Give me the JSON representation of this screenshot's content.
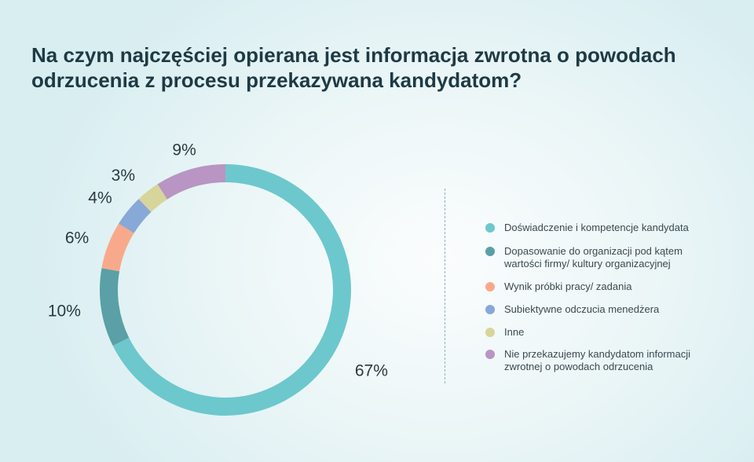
{
  "title": {
    "line1": "Na czym najczęściej opierana jest informacja zwrotna o powodach",
    "line2": "odrzucenia z procesu przekazywana kandydatom?"
  },
  "chart_data": {
    "type": "pie",
    "variant": "donut",
    "slices": [
      {
        "label": "Doświadczenie i kompetencje kandydata",
        "value": 67,
        "value_label": "67%",
        "color": "#6cc8cd"
      },
      {
        "label": "Dopasowanie do organizacji pod kątem wartości firmy/ kultury organizacyjnej",
        "value": 10,
        "value_label": "10%",
        "color": "#5aa0a6"
      },
      {
        "label": "Wynik próbki pracy/ zadania",
        "value": 6,
        "value_label": "6%",
        "color": "#f9a98b"
      },
      {
        "label": "Subiektywne odczucia menedżera",
        "value": 4,
        "value_label": "4%",
        "color": "#88a8d8"
      },
      {
        "label": "Inne",
        "value": 3,
        "value_label": "3%",
        "color": "#d8d59a"
      },
      {
        "label": "Nie przekazujemy kandydatom informacji zwrotnej o powodach odrzucenia",
        "value": 9,
        "value_label": "9%",
        "color": "#b895c2"
      }
    ],
    "legend_placement": "right"
  },
  "legend": [
    {
      "line1": "Doświadczenie i kompetencje kandydata",
      "line2": "",
      "color": "#6cc8cd"
    },
    {
      "line1": "Dopasowanie do organizacji pod kątem",
      "line2": "wartości firmy/ kultury organizacyjnej",
      "color": "#5aa0a6"
    },
    {
      "line1": "Wynik próbki pracy/ zadania",
      "line2": "",
      "color": "#f9a98b"
    },
    {
      "line1": "Subiektywne odczucia menedżera",
      "line2": "",
      "color": "#88a8d8"
    },
    {
      "line1": "Inne",
      "line2": "",
      "color": "#d8d59a"
    },
    {
      "line1": "Nie przekazujemy kandydatom informacji",
      "line2": "zwrotnej o powodach odrzucenia",
      "color": "#b895c2"
    }
  ]
}
